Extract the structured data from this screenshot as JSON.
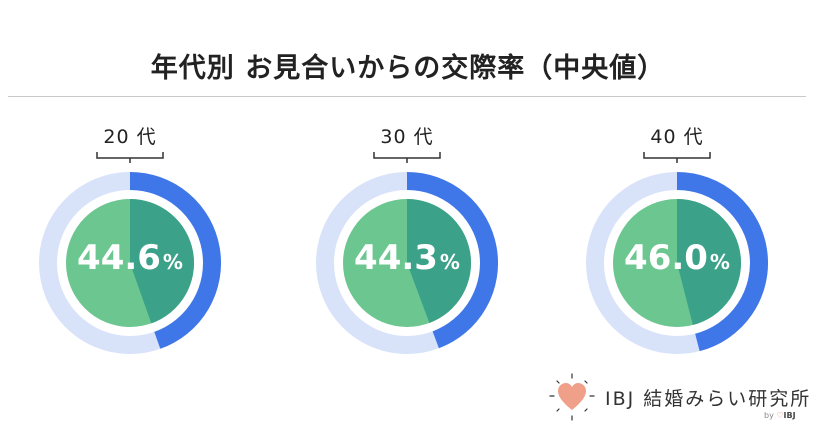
{
  "title": "年代別 お見合いからの交際率（中央値）",
  "colors": {
    "track": "#d8e3fa",
    "arc": "#3f77e8",
    "inner_fill": "#6cc690",
    "inner_slice": "#3ba189",
    "logo_heart": "#f0a089"
  },
  "chart_data": {
    "type": "pie",
    "unit": "%",
    "charts": [
      {
        "category": "20代",
        "age_label": "20 代",
        "value": 44.6,
        "label": "44.6"
      },
      {
        "category": "30代",
        "age_label": "30 代",
        "value": 44.3,
        "label": "44.3"
      },
      {
        "category": "40代",
        "age_label": "40 代",
        "value": 46.0,
        "label": "46.0"
      }
    ]
  },
  "logo": {
    "name": "IBJ 結婚みらい研究所",
    "by": "by",
    "brand": "IBJ",
    "icon": "heart-icon"
  }
}
